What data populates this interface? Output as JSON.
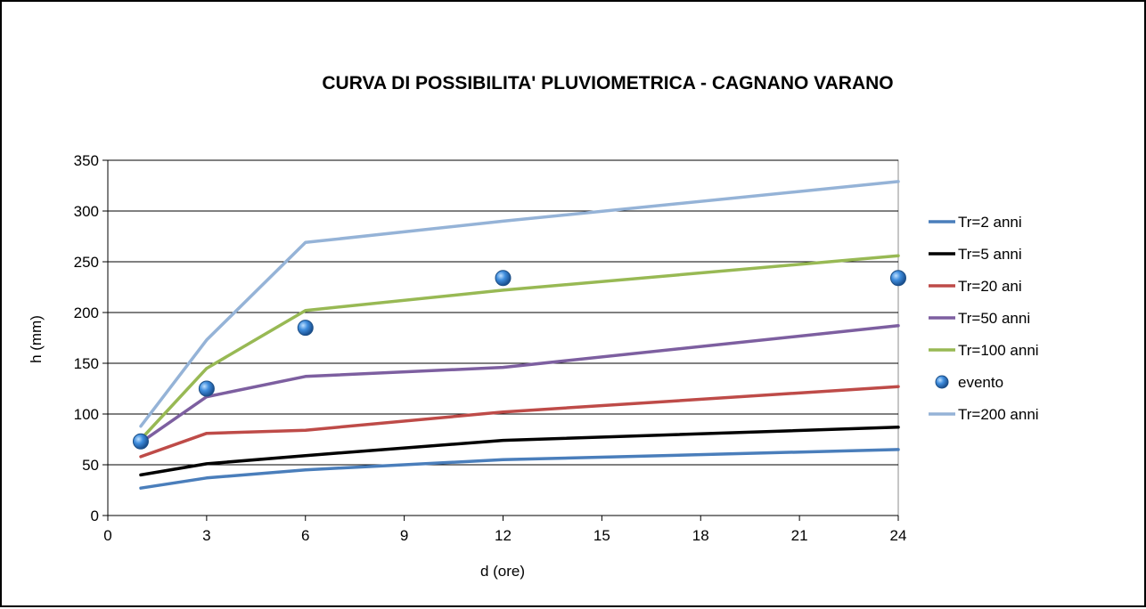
{
  "chart_data": {
    "type": "line",
    "title": "CURVA DI POSSIBILITA' PLUVIOMETRICA - CAGNANO VARANO",
    "xlabel": "d (ore)",
    "ylabel": "h (mm)",
    "xlim": [
      0,
      24
    ],
    "ylim": [
      0,
      350
    ],
    "xticks": [
      0,
      3,
      6,
      9,
      12,
      15,
      18,
      21,
      24
    ],
    "yticks": [
      0,
      50,
      100,
      150,
      200,
      250,
      300,
      350
    ],
    "grid": "horizontal",
    "legend_position": "right",
    "x": [
      1,
      3,
      6,
      12,
      24
    ],
    "series": [
      {
        "name": "Tr=2 anni",
        "kind": "line",
        "color": "#4a7ebb",
        "values": [
          27,
          37,
          45,
          55,
          65
        ]
      },
      {
        "name": "Tr=5 anni",
        "kind": "line",
        "color": "#000000",
        "values": [
          40,
          51,
          59,
          74,
          87
        ]
      },
      {
        "name": "Tr=20 ani",
        "kind": "line",
        "color": "#be4b48",
        "values": [
          58,
          81,
          84,
          102,
          127
        ]
      },
      {
        "name": "Tr=50 anni",
        "kind": "line",
        "color": "#7d5fa0",
        "values": [
          72,
          117,
          137,
          146,
          187
        ]
      },
      {
        "name": "Tr=100 anni",
        "kind": "line",
        "color": "#98b954",
        "values": [
          75,
          145,
          202,
          222,
          256
        ]
      },
      {
        "name": "evento",
        "kind": "scatter",
        "color": "#2e75c8",
        "values": [
          73,
          125,
          185,
          234,
          234
        ]
      },
      {
        "name": "Tr=200 anni",
        "kind": "line",
        "color": "#95b3d7",
        "values": [
          88,
          173,
          269,
          290,
          329
        ]
      }
    ]
  }
}
